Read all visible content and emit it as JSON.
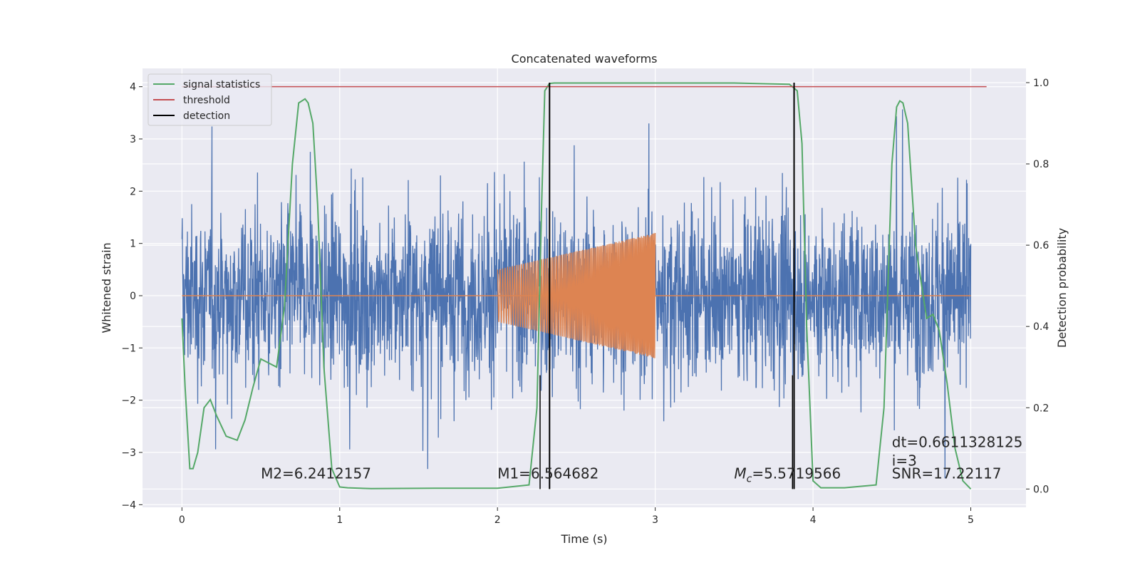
{
  "chart_data": {
    "type": "line",
    "title": "Concatenated waveforms",
    "xlabel": "Time (s)",
    "ylabel": "Whitened strain",
    "y2label": "Detection probability",
    "xlim": [
      -0.25,
      5.35
    ],
    "ylim": [
      -4.05,
      4.35
    ],
    "y2lim": [
      -0.045,
      1.035
    ],
    "xticks": [
      0,
      1,
      2,
      3,
      4,
      5
    ],
    "yticks": [
      -4,
      -3,
      -2,
      -1,
      0,
      1,
      2,
      3,
      4
    ],
    "y2ticks": [
      0.0,
      0.2,
      0.4,
      0.6,
      0.8,
      1.0
    ],
    "xtick_labels": [
      "0",
      "1",
      "2",
      "3",
      "4",
      "5"
    ],
    "ytick_labels": [
      "−4",
      "−3",
      "−2",
      "−1",
      "0",
      "1",
      "2",
      "3",
      "4"
    ],
    "y2tick_labels": [
      "0.0",
      "0.2",
      "0.4",
      "0.6",
      "0.8",
      "1.0"
    ],
    "grid": true,
    "legend_position": "top-left",
    "series": [
      {
        "name": "",
        "role": "whitened_noise",
        "color": "#4c72b0",
        "x_range": [
          0,
          5
        ],
        "envelope_min": -3.7,
        "envelope_max": 3.95
      },
      {
        "name": "",
        "role": "injected_signal",
        "color": "#dd8452",
        "x_range": [
          2.0,
          3.0
        ],
        "amplitude_start": 0.5,
        "amplitude_end": 1.2,
        "baseline": 0
      },
      {
        "name": "signal statistics",
        "color": "#55a868",
        "axis": "right",
        "x": [
          0,
          0.02,
          0.05,
          0.07,
          0.1,
          0.14,
          0.18,
          0.22,
          0.28,
          0.35,
          0.4,
          0.45,
          0.5,
          0.55,
          0.6,
          0.65,
          0.7,
          0.74,
          0.78,
          0.8,
          0.83,
          0.86,
          0.9,
          0.95,
          1.0,
          1.05,
          1.2,
          1.6,
          2.0,
          2.2,
          2.25,
          2.28,
          2.3,
          2.33,
          2.36,
          2.4,
          3.5,
          3.85,
          3.9,
          3.93,
          3.96,
          4.0,
          4.05,
          4.2,
          4.4,
          4.45,
          4.5,
          4.53,
          4.55,
          4.57,
          4.6,
          4.65,
          4.72,
          4.76,
          4.8,
          4.85,
          4.9,
          4.95,
          5.0
        ],
        "values": [
          0.42,
          0.25,
          0.05,
          0.05,
          0.09,
          0.2,
          0.22,
          0.18,
          0.13,
          0.12,
          0.17,
          0.25,
          0.32,
          0.31,
          0.3,
          0.45,
          0.8,
          0.95,
          0.96,
          0.95,
          0.9,
          0.7,
          0.3,
          0.05,
          0.005,
          0.003,
          0.001,
          0.002,
          0.002,
          0.01,
          0.2,
          0.7,
          0.98,
          0.998,
          0.999,
          0.999,
          0.999,
          0.996,
          0.98,
          0.85,
          0.4,
          0.02,
          0.003,
          0.003,
          0.01,
          0.2,
          0.8,
          0.94,
          0.955,
          0.95,
          0.9,
          0.6,
          0.42,
          0.43,
          0.39,
          0.26,
          0.1,
          0.02,
          0.0
        ]
      },
      {
        "name": "threshold",
        "color": "#c44e52",
        "axis": "right",
        "x": [
          0,
          5.1
        ],
        "values": [
          0.99,
          0.99
        ]
      },
      {
        "name": "detection",
        "color": "#000000",
        "axis": "right",
        "x_positions": [
          2.33,
          3.88
        ],
        "range": [
          0,
          1.0
        ]
      }
    ],
    "extra_lines": [
      {
        "x": 2.27,
        "color": "#000000",
        "range": [
          0,
          0.28
        ]
      },
      {
        "x": 3.87,
        "color": "#000000",
        "range": [
          0,
          0.28
        ]
      }
    ],
    "annotations": [
      {
        "text": "M2=6.2412157",
        "x": 0.5,
        "y": -3.5
      },
      {
        "text": "M1=6.564682",
        "x": 2.0,
        "y": -3.5
      },
      {
        "text": "=5.5719566",
        "prefix": "M",
        "sub": "c",
        "x": 3.5,
        "y": -3.5
      },
      {
        "text": "dt=0.6611328125",
        "x": 4.5,
        "y": -2.9
      },
      {
        "text": " i=3",
        "x": 4.5,
        "y": -3.25
      },
      {
        "text": "SNR=17.22117",
        "x": 4.5,
        "y": -3.5
      }
    ]
  }
}
